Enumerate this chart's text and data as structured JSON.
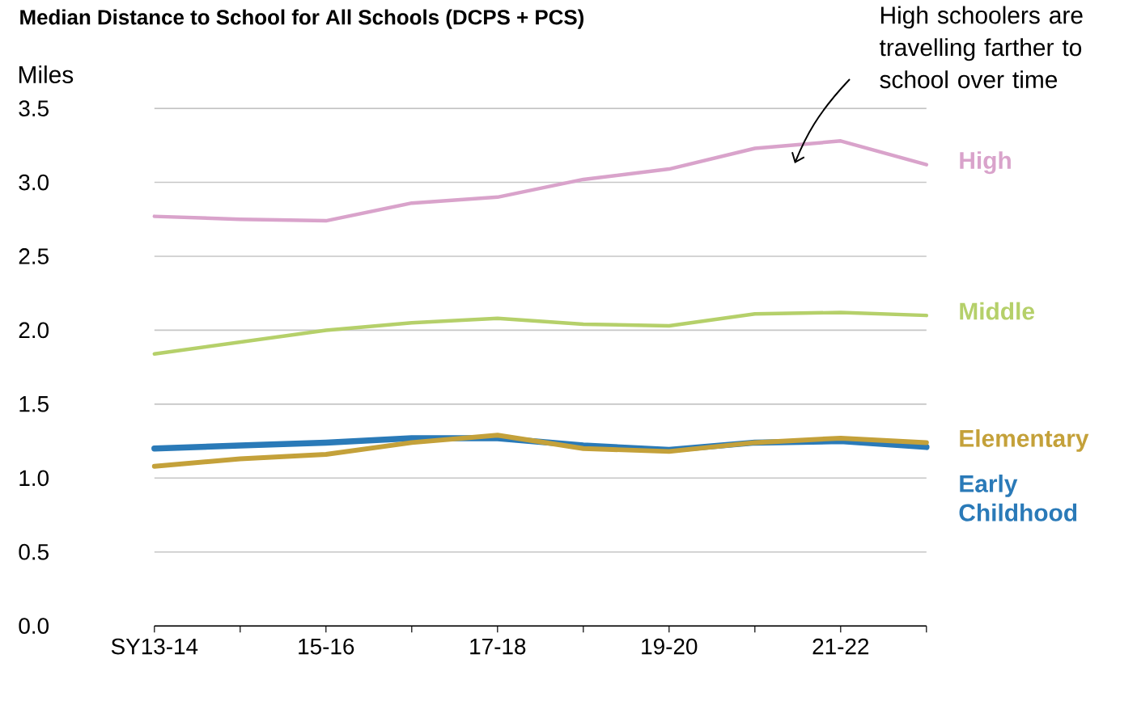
{
  "chart_data": {
    "type": "line",
    "title": "Median Distance to School for All Schools (DCPS + PCS)",
    "ylabel": "Miles",
    "categories": [
      "SY13-14",
      null,
      "15-16",
      null,
      "17-18",
      null,
      "19-20",
      null,
      "21-22",
      null
    ],
    "series": [
      {
        "name": "High",
        "color": "#d9a3cb",
        "values": [
          2.77,
          2.75,
          2.74,
          2.86,
          2.9,
          3.02,
          3.09,
          3.23,
          3.28,
          3.12
        ]
      },
      {
        "name": "Middle",
        "color": "#b5d06a",
        "values": [
          1.84,
          1.92,
          2.0,
          2.05,
          2.08,
          2.04,
          2.03,
          2.11,
          2.12,
          2.1
        ]
      },
      {
        "name": "Elementary",
        "color": "#c4a13a",
        "values": [
          1.08,
          1.13,
          1.16,
          1.24,
          1.29,
          1.2,
          1.18,
          1.24,
          1.27,
          1.24
        ]
      },
      {
        "name": "Early Childhood",
        "color": "#2a7ab8",
        "values": [
          1.2,
          1.22,
          1.24,
          1.27,
          1.27,
          1.22,
          1.19,
          1.24,
          1.25,
          1.21
        ]
      }
    ],
    "ylim": [
      0,
      3.5
    ],
    "yticks": [
      {
        "value": 0,
        "label": "0.0"
      },
      {
        "value": 0.5,
        "label": "0.5"
      },
      {
        "value": 1,
        "label": "1.0"
      },
      {
        "value": 1.5,
        "label": "1.5"
      },
      {
        "value": 2,
        "label": "2.0"
      },
      {
        "value": 2.5,
        "label": "2.5"
      },
      {
        "value": 3,
        "label": "3.0"
      },
      {
        "value": 3.5,
        "label": "3.5"
      }
    ],
    "grid": "y",
    "legend": false,
    "marker": "none",
    "line_style": "solid",
    "annotations": [
      "High schoolers are travelling farther to school over time"
    ]
  }
}
